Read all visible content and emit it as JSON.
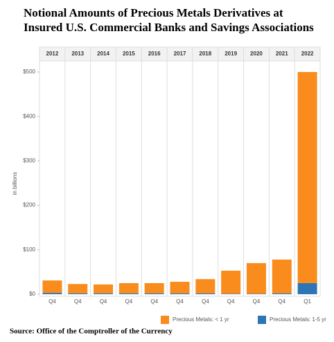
{
  "chart_data": {
    "type": "bar",
    "stacked": true,
    "title": "Notional Amounts of Precious Metals Derivatives at",
    "subtitle": "Insured U.S. Commercial Banks and Savings Associations",
    "y_label": "in billions",
    "categories": [
      "2012",
      "2013",
      "2014",
      "2015",
      "2016",
      "2017",
      "2018",
      "2019",
      "2020",
      "2021",
      "2022"
    ],
    "quarters": [
      "Q4",
      "Q4",
      "Q4",
      "Q4",
      "Q4",
      "Q4",
      "Q4",
      "Q4",
      "Q4",
      "Q4",
      "Q1"
    ],
    "series": [
      {
        "name": "Precious Metals: 1-5 yr",
        "color": "#2e75b6",
        "values": [
          3,
          2,
          2,
          2,
          2,
          2,
          2,
          1,
          1,
          2,
          25
        ]
      },
      {
        "name": "Precious Metals: < 1 yr",
        "color": "#f98c1c",
        "values": [
          28,
          21,
          20,
          23,
          23,
          26,
          32,
          52,
          69,
          76,
          475
        ]
      }
    ],
    "ylim": [
      0,
      500
    ],
    "yticks": [
      {
        "value": 0,
        "label": "$0"
      },
      {
        "value": 100,
        "label": "$100"
      },
      {
        "value": 200,
        "label": "$200"
      },
      {
        "value": 300,
        "label": "$300"
      },
      {
        "value": 400,
        "label": "$400"
      },
      {
        "value": 500,
        "label": "$500"
      }
    ],
    "source": "Source: Office of the Comptroller of the Currency"
  }
}
